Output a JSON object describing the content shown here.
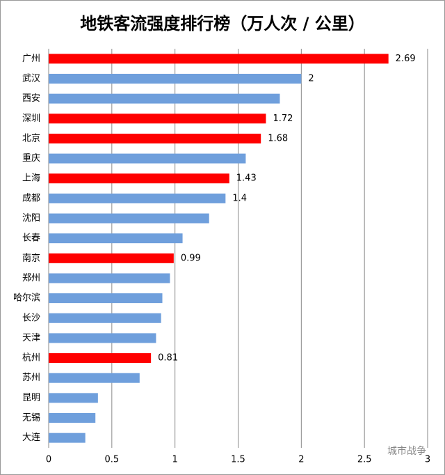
{
  "chart_data": {
    "type": "barh",
    "title": "地铁客流强度排行榜（万人次 / 公里）",
    "categories": [
      "广州",
      "武汉",
      "西安",
      "深圳",
      "北京",
      "重庆",
      "上海",
      "成都",
      "沈阳",
      "长春",
      "南京",
      "郑州",
      "哈尔滨",
      "长沙",
      "天津",
      "杭州",
      "苏州",
      "昆明",
      "无锡",
      "大连"
    ],
    "values": [
      2.69,
      2,
      1.83,
      1.72,
      1.68,
      1.56,
      1.43,
      1.4,
      1.27,
      1.06,
      0.99,
      0.96,
      0.9,
      0.89,
      0.85,
      0.81,
      0.72,
      0.39,
      0.37,
      0.29
    ],
    "value_labels": [
      "2.69",
      "2",
      null,
      "1.72",
      "1.68",
      null,
      "1.43",
      "1.4",
      null,
      null,
      "0.99",
      null,
      null,
      null,
      null,
      "0.81",
      null,
      null,
      null,
      null
    ],
    "colors": [
      "#ff0000",
      "#6f9fdc",
      "#6f9fdc",
      "#ff0000",
      "#ff0000",
      "#6f9fdc",
      "#ff0000",
      "#6f9fdc",
      "#6f9fdc",
      "#6f9fdc",
      "#ff0000",
      "#6f9fdc",
      "#6f9fdc",
      "#6f9fdc",
      "#6f9fdc",
      "#ff0000",
      "#6f9fdc",
      "#6f9fdc",
      "#6f9fdc",
      "#6f9fdc"
    ],
    "xlim": [
      0,
      3
    ],
    "xticks": [
      0,
      0.5,
      1,
      1.5,
      2,
      2.5,
      3
    ],
    "grid": true,
    "watermark": "城市战争"
  }
}
